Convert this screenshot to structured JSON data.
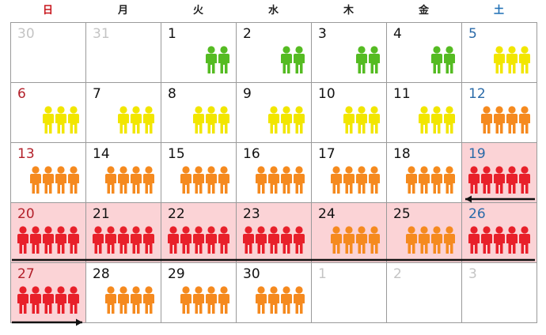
{
  "calendar": {
    "weekdays": [
      {
        "label": "日",
        "type": "sun"
      },
      {
        "label": "月",
        "type": "wk"
      },
      {
        "label": "火",
        "type": "wk"
      },
      {
        "label": "水",
        "type": "wk"
      },
      {
        "label": "木",
        "type": "wk"
      },
      {
        "label": "金",
        "type": "wk"
      },
      {
        "label": "土",
        "type": "sat"
      }
    ],
    "level_colors": {
      "green": "#55bb22",
      "yellow": "#f2e600",
      "orange": "#f58a1f",
      "red": "#e8202a"
    },
    "icon": "person-icon",
    "weeks": [
      [
        {
          "day": "30",
          "out": true,
          "people": 0,
          "level": "none"
        },
        {
          "day": "31",
          "out": true,
          "people": 0,
          "level": "none"
        },
        {
          "day": "1",
          "people": 2,
          "level": "green"
        },
        {
          "day": "2",
          "people": 2,
          "level": "green"
        },
        {
          "day": "3",
          "people": 2,
          "level": "green"
        },
        {
          "day": "4",
          "people": 2,
          "level": "green"
        },
        {
          "day": "5",
          "people": 3,
          "level": "yellow"
        }
      ],
      [
        {
          "day": "6",
          "people": 3,
          "level": "yellow"
        },
        {
          "day": "7",
          "people": 3,
          "level": "yellow"
        },
        {
          "day": "8",
          "people": 3,
          "level": "yellow"
        },
        {
          "day": "9",
          "people": 3,
          "level": "yellow"
        },
        {
          "day": "10",
          "people": 3,
          "level": "yellow"
        },
        {
          "day": "11",
          "people": 3,
          "level": "yellow"
        },
        {
          "day": "12",
          "people": 4,
          "level": "orange"
        }
      ],
      [
        {
          "day": "13",
          "people": 4,
          "level": "orange"
        },
        {
          "day": "14",
          "people": 4,
          "level": "orange"
        },
        {
          "day": "15",
          "people": 4,
          "level": "orange"
        },
        {
          "day": "16",
          "people": 4,
          "level": "orange"
        },
        {
          "day": "17",
          "people": 4,
          "level": "orange"
        },
        {
          "day": "18",
          "people": 4,
          "level": "orange"
        },
        {
          "day": "19",
          "people": 5,
          "level": "red",
          "highlight": true
        }
      ],
      [
        {
          "day": "20",
          "people": 5,
          "level": "red",
          "highlight": true
        },
        {
          "day": "21",
          "people": 5,
          "level": "red",
          "highlight": true
        },
        {
          "day": "22",
          "people": 5,
          "level": "red",
          "highlight": true
        },
        {
          "day": "23",
          "people": 5,
          "level": "red",
          "highlight": true
        },
        {
          "day": "24",
          "people": 4,
          "level": "orange",
          "highlight": true
        },
        {
          "day": "25",
          "people": 4,
          "level": "orange",
          "highlight": true
        },
        {
          "day": "26",
          "people": 5,
          "level": "red",
          "highlight": true
        }
      ],
      [
        {
          "day": "27",
          "people": 5,
          "level": "red",
          "highlight": true
        },
        {
          "day": "28",
          "people": 4,
          "level": "orange"
        },
        {
          "day": "29",
          "people": 4,
          "level": "orange"
        },
        {
          "day": "30",
          "people": 4,
          "level": "orange"
        },
        {
          "day": "1",
          "out": true,
          "people": 0,
          "level": "none"
        },
        {
          "day": "2",
          "out": true,
          "people": 0,
          "level": "none"
        },
        {
          "day": "3",
          "out": true,
          "people": 0,
          "level": "none"
        }
      ]
    ],
    "period_arrows": [
      "period-arrow-week3",
      "period-line-week4",
      "period-arrow-week5"
    ]
  }
}
